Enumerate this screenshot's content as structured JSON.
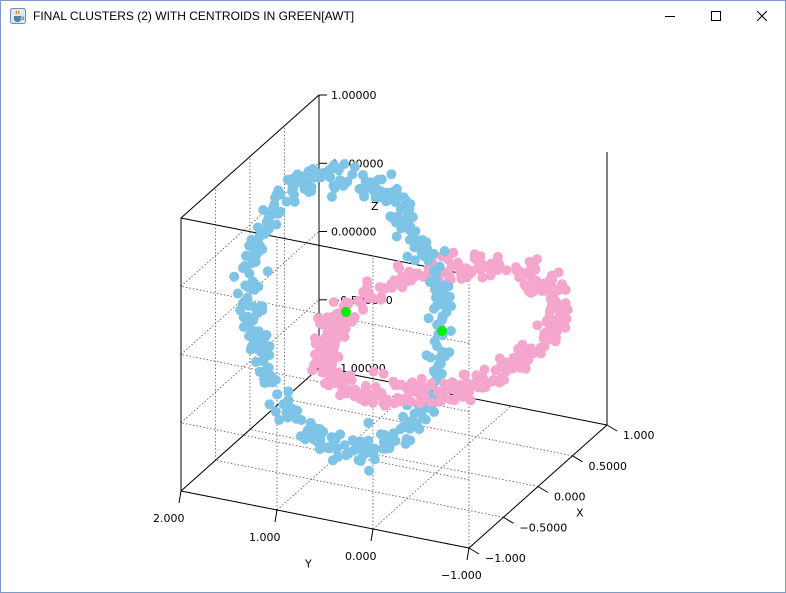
{
  "window": {
    "title": "FINAL CLUSTERS (2) WITH CENTROIDS IN GREEN[AWT]",
    "icon": "java-cup-icon",
    "controls": [
      "minimize-icon",
      "maximize-icon",
      "close-icon"
    ]
  },
  "chart_data": {
    "type": "scatter",
    "dimensions": 3,
    "title": "",
    "xlabel": "X",
    "ylabel": "Y",
    "zlabel": "Z",
    "xlim": [
      -1.0,
      1.0
    ],
    "ylim": [
      -1.0,
      2.0
    ],
    "zlim": [
      -1.0,
      1.0
    ],
    "x_ticks": [
      "1.000",
      "0.5000",
      "0.000",
      "−0.5000",
      "−1.000"
    ],
    "y_ticks": [
      "2.000",
      "1.000",
      "0.000",
      "−1.000"
    ],
    "z_ticks": [
      "1.00000",
      "0.500000",
      "0.00000",
      "−0.500000",
      "−1.00000"
    ],
    "grid": true,
    "box": true,
    "series": [
      {
        "color": "#7ec4e6",
        "shape": "ring",
        "plane": "x=0",
        "center": [
          0,
          1,
          0
        ],
        "radius": 1.0,
        "points": 400,
        "noise": 0.05
      },
      {
        "color": "#f4a6cc",
        "shape": "ring",
        "plane": "z=0",
        "center": [
          0,
          0,
          0
        ],
        "radius": 1.0,
        "points": 400,
        "noise": 0.05
      }
    ],
    "centroids": {
      "color": "#00ee00",
      "points": [
        [
          0.0,
          1.0,
          0.0
        ],
        [
          0.0,
          0.0,
          0.0
        ]
      ]
    }
  }
}
